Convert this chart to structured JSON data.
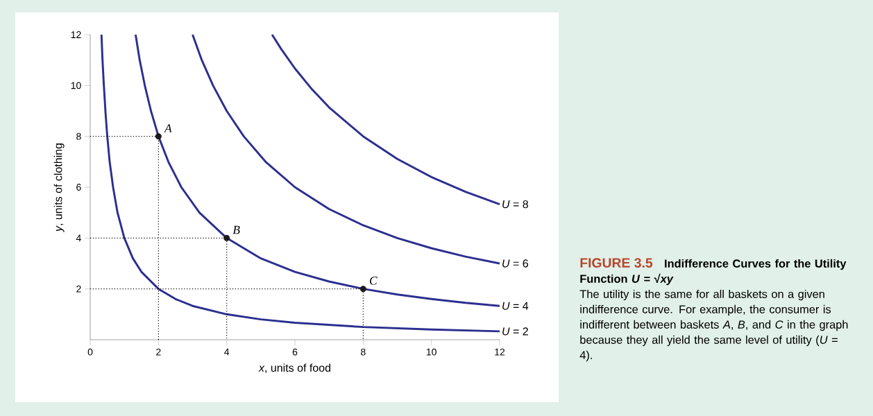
{
  "chart_data": {
    "type": "line",
    "title": "FIGURE 3.5",
    "subtitle": "Indifference Curves for the Utility Function *U* = √*xy*",
    "xlabel": "*x*, units of food",
    "ylabel": "*y*, units of clothing",
    "xlim": [
      0,
      12
    ],
    "ylim": [
      0,
      12
    ],
    "xticks": [
      0,
      2,
      4,
      6,
      8,
      10,
      12
    ],
    "yticks": [
      2,
      4,
      6,
      8,
      10,
      12
    ],
    "grid": false,
    "legend": false,
    "series": [
      {
        "name": "*U* = 2",
        "color": "#2b2f8f",
        "x": [
          0.33,
          0.36,
          0.4,
          0.45,
          0.5,
          0.57,
          0.67,
          0.8,
          1,
          1.25,
          1.5,
          2,
          2.5,
          3,
          4,
          5,
          6,
          8,
          10,
          12
        ],
        "values": [
          12,
          11,
          10,
          8.9,
          8,
          7,
          6,
          5,
          4,
          3.2,
          2.67,
          2,
          1.6,
          1.33,
          1,
          0.8,
          0.67,
          0.5,
          0.4,
          0.33
        ]
      },
      {
        "name": "*U* = 4",
        "color": "#2b2f8f",
        "x": [
          1.33,
          1.45,
          1.6,
          1.78,
          2,
          2.29,
          2.67,
          3.2,
          4,
          5,
          6,
          7,
          8,
          9,
          10,
          11,
          12
        ],
        "values": [
          12,
          11,
          10,
          9,
          8,
          7,
          6,
          5,
          4,
          3.2,
          2.67,
          2.29,
          2,
          1.78,
          1.6,
          1.45,
          1.33
        ]
      },
      {
        "name": "*U* = 6",
        "color": "#2b2f8f",
        "x": [
          3,
          3.27,
          3.6,
          4,
          4.5,
          5.14,
          6,
          7,
          8,
          9,
          10,
          11,
          12
        ],
        "values": [
          12,
          11,
          10,
          9,
          8,
          7,
          6,
          5.14,
          4.5,
          4,
          3.6,
          3.27,
          3
        ]
      },
      {
        "name": "*U* = 8",
        "color": "#2b2f8f",
        "x": [
          5.33,
          5.6,
          6,
          6.5,
          7,
          8,
          9,
          10,
          11,
          12
        ],
        "values": [
          12,
          11.43,
          10.67,
          9.85,
          9.14,
          8,
          7.11,
          6.4,
          5.82,
          5.33
        ]
      },
      {
        "color": "#000000",
        "line_style": "dotted",
        "x": [
          0,
          2,
          2
        ],
        "values": [
          8,
          8,
          0
        ]
      },
      {
        "color": "#000000",
        "line_style": "dotted",
        "x": [
          0,
          4,
          4
        ],
        "values": [
          4,
          4,
          0
        ]
      },
      {
        "color": "#000000",
        "line_style": "dotted",
        "x": [
          0,
          8,
          8
        ],
        "values": [
          2,
          2,
          0
        ]
      },
      {
        "type": "scatter",
        "marker": "circle",
        "color": "#1a1a1a",
        "x": [
          2,
          4,
          8
        ],
        "values": [
          8,
          4,
          2
        ]
      }
    ],
    "annotations": [
      {
        "text": "A",
        "x": 2,
        "y": 8
      },
      {
        "text": "B",
        "x": 4,
        "y": 4
      },
      {
        "text": "C",
        "x": 8,
        "y": 2
      },
      "The utility is the same for all baskets on a given indifference curve. For example, the consumer is indifferent between baskets *A*, *B*, and *C* in the graph because they all yield the same level of utility (*U* = 4)."
    ]
  }
}
